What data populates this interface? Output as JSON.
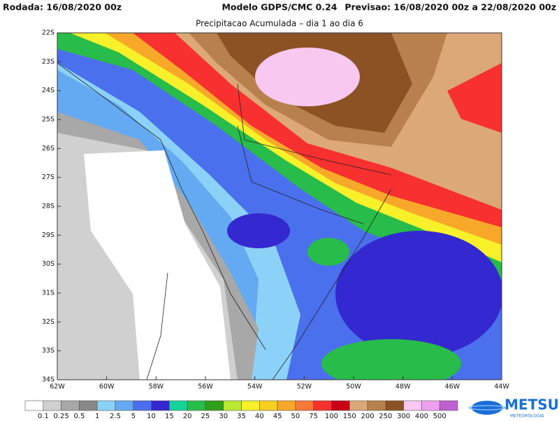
{
  "header": {
    "run": "Rodada: 16/08/2020 00z",
    "model": "Modelo GDPS/CMC 0.24",
    "forecast": "Previsao: 16/08/2020 00z a 22/08/2020 00z"
  },
  "subtitle": "Precipitacao Acumulada – dia 1 ao dia 6",
  "map": {
    "lat_labels": [
      "22S",
      "23S",
      "24S",
      "25S",
      "26S",
      "27S",
      "28S",
      "29S",
      "30S",
      "31S",
      "32S",
      "33S",
      "34S"
    ],
    "lon_labels": [
      "62W",
      "60W",
      "58W",
      "56W",
      "54W",
      "52W",
      "50W",
      "48W",
      "46W",
      "44W"
    ]
  },
  "legend": {
    "labels": [
      "0.1",
      "0.25",
      "0.5",
      "1",
      "2.5",
      "5",
      "10",
      "15",
      "20",
      "25",
      "30",
      "35",
      "40",
      "45",
      "50",
      "75",
      "100",
      "150",
      "200",
      "250",
      "300",
      "400",
      "500"
    ],
    "colors": [
      "#ffffff",
      "#d0d0d0",
      "#a8a8a8",
      "#888888",
      "#8cd2f8",
      "#64aaf2",
      "#4a70ee",
      "#3428d0",
      "#14d49a",
      "#28bc4a",
      "#30a018",
      "#b8e830",
      "#f8f028",
      "#f8d020",
      "#f8a828",
      "#f87838",
      "#f83030",
      "#c80018",
      "#dca878",
      "#b8804c",
      "#8c5224",
      "#f8c8f0",
      "#f0a0f0",
      "#c060d0"
    ]
  },
  "logo": {
    "name": "METSUL",
    "tagline": "METEOROLOGIA"
  }
}
